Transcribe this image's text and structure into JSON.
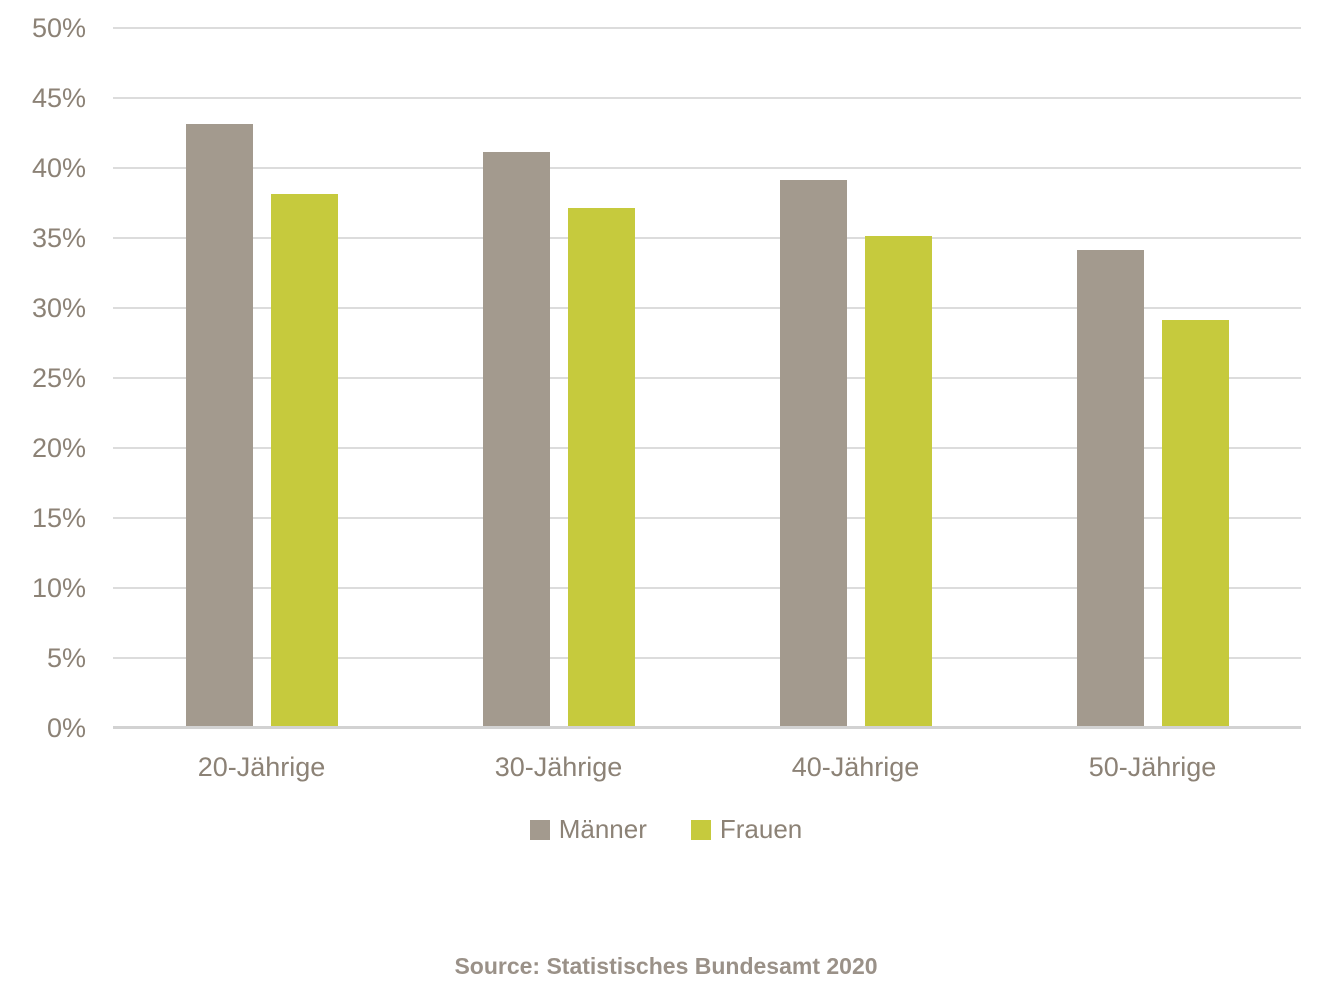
{
  "chart_data": {
    "type": "bar",
    "title": "",
    "categories": [
      "20-Jährige",
      "30-Jährige",
      "40-Jährige",
      "50-Jährige"
    ],
    "series": [
      {
        "name": "Männer",
        "color": "#a39a8e",
        "values": [
          43,
          41,
          39,
          34
        ]
      },
      {
        "name": "Frauen",
        "color": "#c6ca3d",
        "values": [
          38,
          37,
          35,
          29
        ]
      }
    ],
    "xlabel": "",
    "ylabel": "",
    "ylim": [
      0,
      50
    ],
    "ytick_step": 5,
    "ytick_suffix": "%",
    "grid": true,
    "legend_position": "bottom",
    "source_note": "Source: Statistisches Bundesamt 2020"
  },
  "style": {
    "gridline_color": "#dcdcdc",
    "baseline_color": "#d2d2d2",
    "tick_label_color": "#8c8276",
    "source_text_color": "#9a9188",
    "background": "#ffffff"
  }
}
